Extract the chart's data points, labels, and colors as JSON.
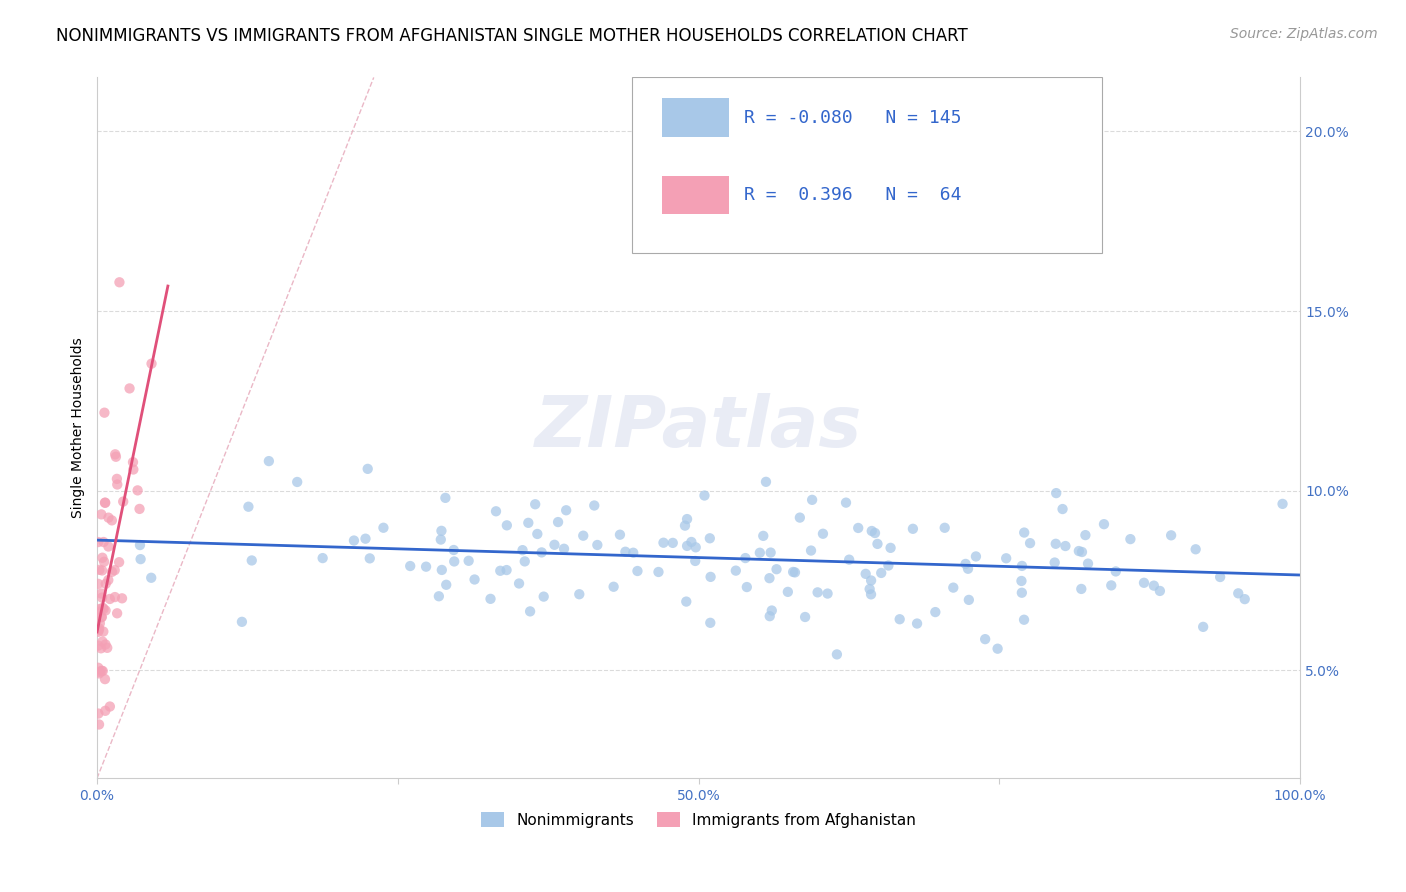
{
  "title": "NONIMMIGRANTS VS IMMIGRANTS FROM AFGHANISTAN SINGLE MOTHER HOUSEHOLDS CORRELATION CHART",
  "source": "Source: ZipAtlas.com",
  "tick_color": "#4472c4",
  "ylabel": "Single Mother Households",
  "watermark": "ZIPatlas",
  "blue_R": -0.08,
  "blue_N": 145,
  "pink_R": 0.396,
  "pink_N": 64,
  "blue_color": "#a8c8e8",
  "pink_color": "#f4a0b5",
  "blue_line_color": "#3366cc",
  "pink_line_color": "#e0507a",
  "diag_color": "#e8b0c0",
  "background_color": "#ffffff",
  "grid_color": "#cccccc",
  "xlim": [
    0.0,
    1.0
  ],
  "ylim": [
    0.02,
    0.215
  ],
  "ytick_vals": [
    0.05,
    0.1,
    0.15,
    0.2
  ],
  "ytick_labels": [
    "5.0%",
    "10.0%",
    "15.0%",
    "20.0%"
  ],
  "xtick_vals": [
    0.0,
    0.25,
    0.5,
    0.75,
    1.0
  ],
  "xtick_labels": [
    "0.0%",
    "",
    "50.0%",
    "",
    "100.0%"
  ],
  "title_fontsize": 12,
  "axis_label_fontsize": 10,
  "tick_fontsize": 10,
  "legend_fontsize": 13,
  "watermark_fontsize": 52,
  "watermark_alpha": 0.18,
  "watermark_color": "#8899cc",
  "source_fontsize": 10
}
